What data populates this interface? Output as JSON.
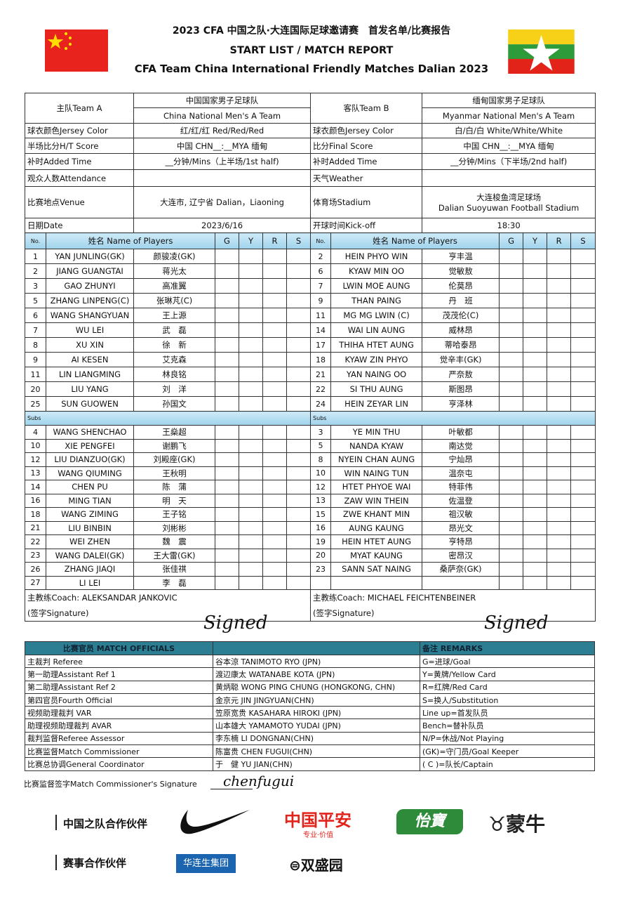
{
  "header": {
    "title_cn": "2023 CFA 中国之队·大连国际足球邀请赛　首发名单/比赛报告",
    "title_en1": "START LIST / MATCH REPORT",
    "title_en2": "CFA Team China International Friendly Matches Dalian 2023",
    "flag_left": "china-flag",
    "flag_right": "myanmar-flag"
  },
  "info": {
    "team_a_label": "主队Team A",
    "team_a_cn": "中国国家男子足球队",
    "team_a_en": "China National Men's A Team",
    "team_b_label": "客队Team B",
    "team_b_cn": "缅甸国家男子足球队",
    "team_b_en": "Myanmar National  Men's A Team",
    "jersey_label": "球衣颜色Jersey Color",
    "jersey_a": "红/红/红 Red/Red/Red",
    "jersey_b": "白/白/白 White/White/White",
    "ht_label": "半场比分H/T Score",
    "ht_value": "中国 CHN__:__MYA 缅甸",
    "final_label": "比分Final Score",
    "final_value": "中国 CHN__:__MYA 缅甸",
    "added_label": "补时Added Time",
    "added_1": "__分钟/Mins（上半场/1st half)",
    "added_2": "__分钟/Mins（下半场/2nd half)",
    "attendance_label": "观众人数Attendance",
    "attendance_value": "",
    "weather_label": "天气Weather",
    "weather_value": "",
    "venue_label": "比赛地点Venue",
    "venue_value": "大连市, 辽宁省 Dalian，Liaoning",
    "stadium_label": "体育场Stadium",
    "stadium_cn": "大连梭鱼湾足球场",
    "stadium_en": "Dalian Suoyuwan Football Stadium",
    "date_label": "日期Date",
    "date_value": "2023/6/16",
    "kickoff_label": "开球时间Kick-off",
    "kickoff_value": "18:30"
  },
  "columns": {
    "no": "No.",
    "name": "姓名 Name of Players",
    "g": "G",
    "y": "Y",
    "r": "R",
    "s": "S",
    "subs": "Subs"
  },
  "team_a": {
    "starters": [
      [
        "1",
        "YAN JUNLING(GK)",
        "颜骏凌(GK)"
      ],
      [
        "2",
        "JIANG GUANGTAI",
        "蒋光太"
      ],
      [
        "3",
        "GAO ZHUNYI",
        "高准翼"
      ],
      [
        "5",
        "ZHANG LINPENG(C)",
        "张琳芃(C)"
      ],
      [
        "6",
        "WANG SHANGYUAN",
        "王上源"
      ],
      [
        "7",
        "WU LEI",
        "武　磊"
      ],
      [
        "8",
        "XU XIN",
        "徐　新"
      ],
      [
        "9",
        "AI KESEN",
        "艾克森"
      ],
      [
        "11",
        "LIN LIANGMING",
        "林良铭"
      ],
      [
        "20",
        "LIU YANG",
        "刘　洋"
      ],
      [
        "25",
        "SUN GUOWEN",
        "孙国文"
      ]
    ],
    "subs": [
      [
        "4",
        "WANG SHENCHAO",
        "王燊超"
      ],
      [
        "10",
        "XIE PENGFEI",
        "谢鹏飞"
      ],
      [
        "12",
        "LIU DIANZUO(GK)",
        "刘殿座(GK)"
      ],
      [
        "13",
        "WANG QIUMING",
        "王秋明"
      ],
      [
        "14",
        "CHEN PU",
        "陈　蒲"
      ],
      [
        "16",
        "MING TIAN",
        "明　天"
      ],
      [
        "18",
        "WANG ZIMING",
        "王子铭"
      ],
      [
        "21",
        "LIU BINBIN",
        "刘彬彬"
      ],
      [
        "22",
        "WEI ZHEN",
        "魏　震"
      ],
      [
        "23",
        "WANG DALEI(GK)",
        "王大雷(GK)"
      ],
      [
        "26",
        "ZHANG JIAQI",
        "张佳祺"
      ],
      [
        "27",
        "LI LEI",
        "李　磊"
      ]
    ],
    "coach": "主教练Coach:  ALEKSANDAR JANKOVIC",
    "signature_label": "(签字Signature)",
    "signature": "Signed"
  },
  "team_b": {
    "starters": [
      [
        "2",
        "HEIN PHYO WIN",
        "亨丰温"
      ],
      [
        "6",
        "KYAW MIN OO",
        "觉敏敖"
      ],
      [
        "7",
        "LWIN MOE AUNG",
        "伦莫昂"
      ],
      [
        "9",
        "THAN PAING",
        "丹　班"
      ],
      [
        "11",
        "MG MG LWIN (C)",
        "茂茂伦(C)"
      ],
      [
        "14",
        "WAI LIN AUNG",
        "威林昂"
      ],
      [
        "17",
        "THIHA HTET AUNG",
        "蒂哈泰昂"
      ],
      [
        "18",
        "KYAW ZIN PHYO",
        "觉辛丰(GK)"
      ],
      [
        "21",
        "YAN NAING OO",
        "严奈敖"
      ],
      [
        "22",
        "SI THU AUNG",
        "斯图昂"
      ],
      [
        "24",
        "HEIN ZEYAR LIN",
        "亨泽林"
      ]
    ],
    "subs": [
      [
        "3",
        "YE MIN THU",
        "叶敏都"
      ],
      [
        "5",
        "NANDA KYAW",
        "南达觉"
      ],
      [
        "8",
        "NYEIN CHAN AUNG",
        "宁灿昂"
      ],
      [
        "10",
        "WIN NAING TUN",
        "温奈屯"
      ],
      [
        "12",
        "HTET PHYOE WAI",
        "特菲伟"
      ],
      [
        "13",
        "ZAW WIN THEIN",
        "佐温登"
      ],
      [
        "15",
        "ZWE KHANT MIN",
        "祖汉敏"
      ],
      [
        "16",
        "AUNG KAUNG",
        "昂光文"
      ],
      [
        "19",
        "HEIN HTET AUNG",
        "亨特昂"
      ],
      [
        "20",
        "MYAT KAUNG",
        "密昂汉"
      ],
      [
        "23",
        "SANN SAT NAING",
        "桑萨奈(GK)"
      ]
    ],
    "coach": "主教练Coach:  MICHAEL FEICHTENBEINER",
    "signature_label": "(签字Signature)",
    "signature": "Signed"
  },
  "officials": {
    "header": "比赛官员 MATCH OFFICIALS",
    "remarks_header": "备注 REMARKS",
    "rows": [
      [
        "主裁判 Referee",
        "谷本涼 TANIMOTO RYO (JPN)",
        "G=进球/Goal"
      ],
      [
        "第一助理Assistant Ref 1",
        "渡辺康太 WATANABE KOTA (JPN)",
        "Y=黄牌/Yellow Card"
      ],
      [
        "第二助理Assistant Ref 2",
        "黄炳聪 WONG PING CHUNG (HONGKONG, CHN)",
        "R=红牌/Red Card"
      ],
      [
        "第四官员Fourth Official",
        "金京元 JIN JINGYUAN(CHN)",
        "S=换人/Substitution"
      ],
      [
        "视频助理裁判 VAR",
        "笠原宽贵 KASAHARA HIROKI (JPN)",
        "Line up=首发队员"
      ],
      [
        "助理视频助理裁判 AVAR",
        "山本雄大 YAMAMOTO YUDAI (JPN)",
        "Bench=替补队员"
      ],
      [
        "裁判监督Referee Assessor",
        "李东楠 LI DONGNAN(CHN)",
        "N/P=休战/Not Playing"
      ],
      [
        "比赛监督Match Commissioner",
        "陈富贵 CHEN FUGUI(CHN)",
        "(GK)=守门员/Goal Keeper"
      ],
      [
        "比赛总协调General Coordinator",
        "于　健 YU JIAN(CHN)",
        "( C )=队长/Captain"
      ]
    ]
  },
  "commissioner": {
    "label": "比赛监督签字Match Commissioner's Signature",
    "signature": "chenfugui"
  },
  "sponsors": {
    "partners_label": "中国之队合作伙伴",
    "event_partners_label": "赛事合作伙伴",
    "nike": "nike-swoosh-logo",
    "pingan": "中国平安",
    "pingan_tag": "专业·价值",
    "yibao": "怡寶",
    "mengniu": "蒙牛",
    "hualiansheng": "华连生集团",
    "shuangsheng": "双盛园"
  },
  "colors": {
    "header_blue": "#9fd3ec",
    "officials_teal": "#2c7f92",
    "pingan_red": "#e2231a",
    "yibao_green": "#2e8b3a",
    "hls_blue": "#1b64b0"
  }
}
